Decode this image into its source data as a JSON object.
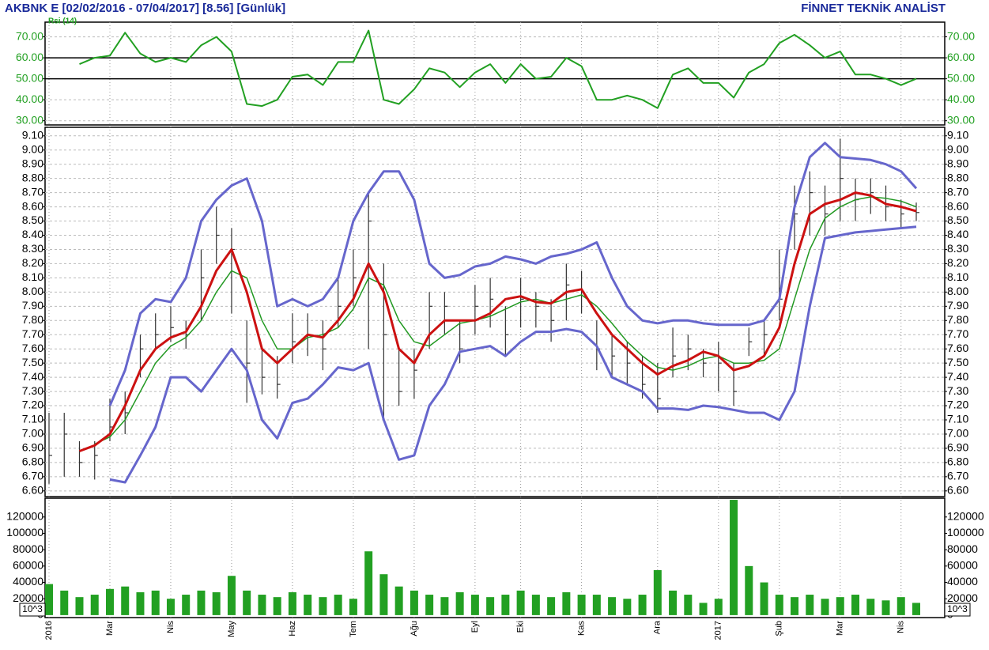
{
  "chart_data": [
    {
      "type": "line",
      "title": "AKBNK E  [02/02/2016 - 07/04/2017]  [8.56]  [Günlük]",
      "source": "FİNNET TEKNİK ANALİST",
      "series": [
        {
          "name": "Rsi (14)",
          "color": "#22a022",
          "values": [
            null,
            null,
            57,
            60,
            61,
            72,
            62,
            58,
            60,
            58,
            66,
            70,
            63,
            38,
            37,
            40,
            51,
            52,
            47,
            58,
            58,
            73,
            40,
            38,
            45,
            55,
            53,
            46,
            53,
            57,
            48,
            57,
            50,
            51,
            60,
            56,
            40,
            40,
            42,
            40,
            36,
            52,
            55,
            48,
            48,
            41,
            53,
            57,
            67,
            71,
            66,
            60,
            63,
            52,
            52,
            50,
            47,
            50
          ]
        }
      ],
      "ylim": [
        28,
        77
      ],
      "yticks": [
        {
          "value": 30,
          "label": "30.00"
        },
        {
          "value": 40,
          "label": "40.00"
        },
        {
          "value": 50,
          "label": "50.00"
        },
        {
          "value": 60,
          "label": "60.00"
        },
        {
          "value": 70,
          "label": "70.00"
        }
      ],
      "levels": [
        50,
        60
      ],
      "grid": true
    },
    {
      "type": "ohlc",
      "color": "#333333",
      "high": [
        7.15,
        7.15,
        6.95,
        6.95,
        7.25,
        7.3,
        7.7,
        7.85,
        7.9,
        7.8,
        8.3,
        8.6,
        8.45,
        7.8,
        7.6,
        7.55,
        7.85,
        7.85,
        7.8,
        8.1,
        8.3,
        8.7,
        8.2,
        7.6,
        7.6,
        8.0,
        8.0,
        7.8,
        8.05,
        8.1,
        7.9,
        8.1,
        8.0,
        7.95,
        8.2,
        8.15,
        7.8,
        7.7,
        7.65,
        7.55,
        7.5,
        7.75,
        7.7,
        7.6,
        7.65,
        7.5,
        7.75,
        7.8,
        8.3,
        8.75,
        8.85,
        8.75,
        9.08,
        8.8,
        8.8,
        8.75,
        8.65,
        8.63
      ],
      "low": [
        6.65,
        6.7,
        6.7,
        6.68,
        6.95,
        7.0,
        7.4,
        7.6,
        7.65,
        7.6,
        7.8,
        8.2,
        7.85,
        7.22,
        7.28,
        7.25,
        7.5,
        7.55,
        7.45,
        7.75,
        7.9,
        7.6,
        7.1,
        7.2,
        7.25,
        7.6,
        7.7,
        7.5,
        7.7,
        7.75,
        7.55,
        7.75,
        7.75,
        7.65,
        7.8,
        7.85,
        7.45,
        7.4,
        7.35,
        7.25,
        7.15,
        7.4,
        7.45,
        7.4,
        7.3,
        7.2,
        7.55,
        7.55,
        7.8,
        8.3,
        8.4,
        8.4,
        8.5,
        8.5,
        8.55,
        8.5,
        8.45,
        8.5
      ],
      "close": [
        6.85,
        7.0,
        6.8,
        6.85,
        7.05,
        7.15,
        7.6,
        7.7,
        7.75,
        7.7,
        8.1,
        8.4,
        8.3,
        7.5,
        7.4,
        7.35,
        7.65,
        7.7,
        7.6,
        7.9,
        8.1,
        8.5,
        7.7,
        7.3,
        7.45,
        7.9,
        7.9,
        7.6,
        7.9,
        7.95,
        7.7,
        7.95,
        7.9,
        7.8,
        8.05,
        8.0,
        7.6,
        7.55,
        7.5,
        7.35,
        7.25,
        7.55,
        7.6,
        7.5,
        7.5,
        7.3,
        7.65,
        7.7,
        7.95,
        8.55,
        8.7,
        8.55,
        8.8,
        8.65,
        8.7,
        8.6,
        8.55,
        8.56
      ],
      "lines": [
        {
          "color": "#6666cc",
          "width": 3,
          "values": [
            null,
            null,
            null,
            null,
            7.2,
            7.45,
            7.85,
            7.95,
            7.93,
            8.1,
            8.5,
            8.65,
            8.75,
            8.8,
            8.5,
            7.9,
            7.95,
            7.9,
            7.95,
            8.1,
            8.5,
            8.7,
            8.85,
            8.85,
            8.65,
            8.2,
            8.1,
            8.12,
            8.18,
            8.2,
            8.25,
            8.23,
            8.2,
            8.25,
            8.27,
            8.3,
            8.35,
            8.1,
            7.9,
            7.8,
            7.78,
            7.8,
            7.8,
            7.78,
            7.77,
            7.77,
            7.77,
            7.8,
            7.95,
            8.6,
            8.95,
            9.05,
            8.95,
            8.94,
            8.93,
            8.9,
            8.85,
            8.73
          ]
        },
        {
          "color": "#6666cc",
          "width": 3,
          "values": [
            null,
            null,
            null,
            null,
            6.68,
            6.66,
            6.85,
            7.05,
            7.4,
            7.4,
            7.3,
            7.45,
            7.6,
            7.45,
            7.1,
            6.97,
            7.22,
            7.25,
            7.35,
            7.47,
            7.45,
            7.5,
            7.1,
            6.82,
            6.85,
            7.2,
            7.35,
            7.58,
            7.6,
            7.62,
            7.55,
            7.65,
            7.72,
            7.72,
            7.74,
            7.72,
            7.62,
            7.4,
            7.35,
            7.3,
            7.18,
            7.18,
            7.17,
            7.2,
            7.19,
            7.17,
            7.15,
            7.15,
            7.1,
            7.3,
            7.9,
            8.38,
            8.4,
            8.42,
            8.43,
            8.44,
            8.45,
            8.46
          ]
        },
        {
          "color": "#229922",
          "width": 1.5,
          "values": [
            null,
            null,
            null,
            6.93,
            6.98,
            7.1,
            7.3,
            7.5,
            7.62,
            7.68,
            7.8,
            8.0,
            8.15,
            8.1,
            7.8,
            7.6,
            7.6,
            7.68,
            7.7,
            7.75,
            7.88,
            8.1,
            8.05,
            7.8,
            7.65,
            7.62,
            7.7,
            7.78,
            7.8,
            7.83,
            7.88,
            7.93,
            7.95,
            7.92,
            7.95,
            7.98,
            7.9,
            7.78,
            7.65,
            7.55,
            7.47,
            7.45,
            7.48,
            7.53,
            7.55,
            7.5,
            7.5,
            7.52,
            7.6,
            7.95,
            8.3,
            8.52,
            8.6,
            8.65,
            8.67,
            8.66,
            8.64,
            8.6
          ]
        },
        {
          "color": "#cc1111",
          "width": 3,
          "values": [
            null,
            null,
            6.88,
            6.92,
            7.0,
            7.2,
            7.45,
            7.6,
            7.68,
            7.72,
            7.9,
            8.15,
            8.3,
            8.0,
            7.6,
            7.5,
            7.6,
            7.7,
            7.68,
            7.8,
            7.95,
            8.2,
            8.0,
            7.6,
            7.5,
            7.7,
            7.8,
            7.8,
            7.8,
            7.85,
            7.95,
            7.97,
            7.93,
            7.92,
            8.0,
            8.02,
            7.85,
            7.7,
            7.6,
            7.5,
            7.42,
            7.48,
            7.52,
            7.58,
            7.55,
            7.45,
            7.48,
            7.55,
            7.75,
            8.2,
            8.55,
            8.62,
            8.65,
            8.7,
            8.68,
            8.62,
            8.6,
            8.57
          ]
        }
      ],
      "ylim": [
        6.56,
        9.16
      ],
      "yticks": [
        {
          "value": 6.6,
          "label": "6.60"
        },
        {
          "value": 6.7,
          "label": "6.70"
        },
        {
          "value": 6.8,
          "label": "6.80"
        },
        {
          "value": 6.9,
          "label": "6.90"
        },
        {
          "value": 7.0,
          "label": "7.00"
        },
        {
          "value": 7.1,
          "label": "7.10"
        },
        {
          "value": 7.2,
          "label": "7.20"
        },
        {
          "value": 7.3,
          "label": "7.30"
        },
        {
          "value": 7.4,
          "label": "7.40"
        },
        {
          "value": 7.5,
          "label": "7.50"
        },
        {
          "value": 7.6,
          "label": "7.60"
        },
        {
          "value": 7.7,
          "label": "7.70"
        },
        {
          "value": 7.8,
          "label": "7.80"
        },
        {
          "value": 7.9,
          "label": "7.90"
        },
        {
          "value": 8.0,
          "label": "8.00"
        },
        {
          "value": 8.1,
          "label": "8.10"
        },
        {
          "value": 8.2,
          "label": "8.20"
        },
        {
          "value": 8.3,
          "label": "8.30"
        },
        {
          "value": 8.4,
          "label": "8.40"
        },
        {
          "value": 8.5,
          "label": "8.50"
        },
        {
          "value": 8.6,
          "label": "8.60"
        },
        {
          "value": 8.7,
          "label": "8.70"
        },
        {
          "value": 8.8,
          "label": "8.80"
        },
        {
          "value": 8.9,
          "label": "8.90"
        },
        {
          "value": 9.0,
          "label": "9.00"
        },
        {
          "value": 9.1,
          "label": "9.10"
        }
      ],
      "grid": true
    },
    {
      "type": "bar",
      "color": "#22a022",
      "categories": [
        "2016",
        null,
        null,
        null,
        "Mar",
        null,
        null,
        null,
        "Nis",
        null,
        null,
        null,
        "May",
        null,
        null,
        null,
        "Haz",
        null,
        null,
        null,
        "Tem",
        null,
        null,
        null,
        "Ağu",
        null,
        null,
        null,
        "Eyl",
        null,
        null,
        "Eki",
        null,
        null,
        null,
        "Kas",
        null,
        null,
        null,
        null,
        "Ara",
        null,
        null,
        null,
        "2017",
        null,
        null,
        null,
        "Şub",
        null,
        null,
        null,
        "Mar",
        null,
        null,
        null,
        "Nis",
        null
      ],
      "values": [
        38000,
        30000,
        22000,
        25000,
        32000,
        35000,
        28000,
        30000,
        20000,
        25000,
        30000,
        28000,
        48000,
        30000,
        25000,
        22000,
        28000,
        25000,
        22000,
        25000,
        20000,
        78000,
        50000,
        35000,
        30000,
        25000,
        22000,
        28000,
        25000,
        22000,
        25000,
        30000,
        25000,
        22000,
        28000,
        25000,
        25000,
        22000,
        20000,
        25000,
        55000,
        30000,
        25000,
        15000,
        20000,
        141000,
        60000,
        40000,
        25000,
        22000,
        25000,
        20000,
        22000,
        25000,
        20000,
        18000,
        22000,
        15000
      ],
      "ylim": [
        -3000,
        143000
      ],
      "yticks": [
        0,
        20000,
        40000,
        60000,
        80000,
        100000,
        120000
      ],
      "scale_label": "10^3"
    }
  ]
}
